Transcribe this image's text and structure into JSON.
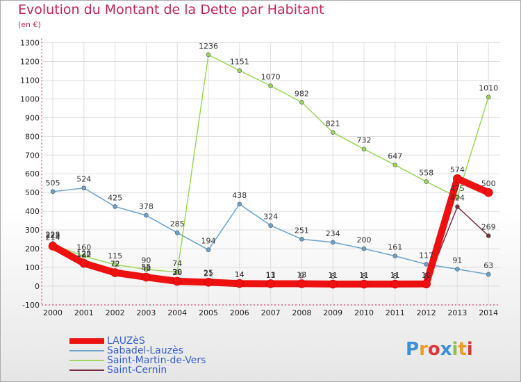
{
  "title": "Evolution du Montant de la Dette par Habitant",
  "subtitle": "(en €)",
  "logo": {
    "text": "Proxiti",
    "letter_colors": [
      "#3a8fd8",
      "#e8a020",
      "#d83a3a",
      "#3a8fd8",
      "#8bc34a",
      "#e8a020",
      "#d83a3a"
    ]
  },
  "chart_data": {
    "type": "line",
    "x": [
      "2000",
      "2001",
      "2002",
      "2003",
      "2004",
      "2005",
      "2006",
      "2007",
      "2008",
      "2009",
      "2010",
      "2011",
      "2012",
      "2013",
      "2014"
    ],
    "ylim": [
      -100,
      1300
    ],
    "yticks": [
      "-100",
      "0",
      "100",
      "200",
      "300",
      "400",
      "500",
      "600",
      "700",
      "800",
      "900",
      "1000",
      "1100",
      "1200",
      "1300"
    ],
    "series": [
      {
        "name": "LAUZèS",
        "color": "#ee1111",
        "width": 10,
        "values": [
          214,
          122,
          72,
          48,
          26,
          21,
          14,
          13,
          13,
          11,
          11,
          11,
          12,
          574,
          500
        ],
        "labels": [
          "214",
          "122",
          "72",
          "48",
          "26",
          "21",
          "14",
          "13",
          "13",
          "11",
          "11",
          "11",
          "12",
          "574",
          "500"
        ]
      },
      {
        "name": "Sabadel-Lauzès",
        "color": "#6aa2cc",
        "width": 1.5,
        "values": [
          505,
          524,
          425,
          378,
          285,
          194,
          438,
          324,
          251,
          234,
          200,
          161,
          117,
          91,
          63
        ],
        "labels": [
          "505",
          "524",
          "425",
          "378",
          "285",
          "194",
          "438",
          "324",
          "251",
          "234",
          "200",
          "161",
          "117",
          "91",
          "63"
        ]
      },
      {
        "name": "Saint-Martin-de-Vers",
        "color": "#9ad65a",
        "width": 1.5,
        "values": [
          223,
          160,
          115,
          90,
          74,
          1236,
          1151,
          1070,
          982,
          821,
          732,
          647,
          558,
          475,
          1010
        ],
        "labels": [
          "223",
          "160",
          "115",
          "90",
          "74",
          "1236",
          "1151",
          "1070",
          "982",
          "821",
          "732",
          "647",
          "558",
          "475",
          "1010"
        ]
      },
      {
        "name": "Saint-Cernin",
        "color": "#7a2e3e",
        "width": 1.5,
        "values": [
          228,
          128,
          72,
          55,
          30,
          25,
          14,
          11,
          9,
          8,
          8,
          8,
          8,
          424,
          269
        ],
        "labels": [
          "228",
          "128",
          "72",
          "55",
          "30",
          "25",
          "14",
          "11",
          "9",
          "8",
          "8",
          "8",
          "8",
          "424",
          "269"
        ]
      }
    ]
  }
}
